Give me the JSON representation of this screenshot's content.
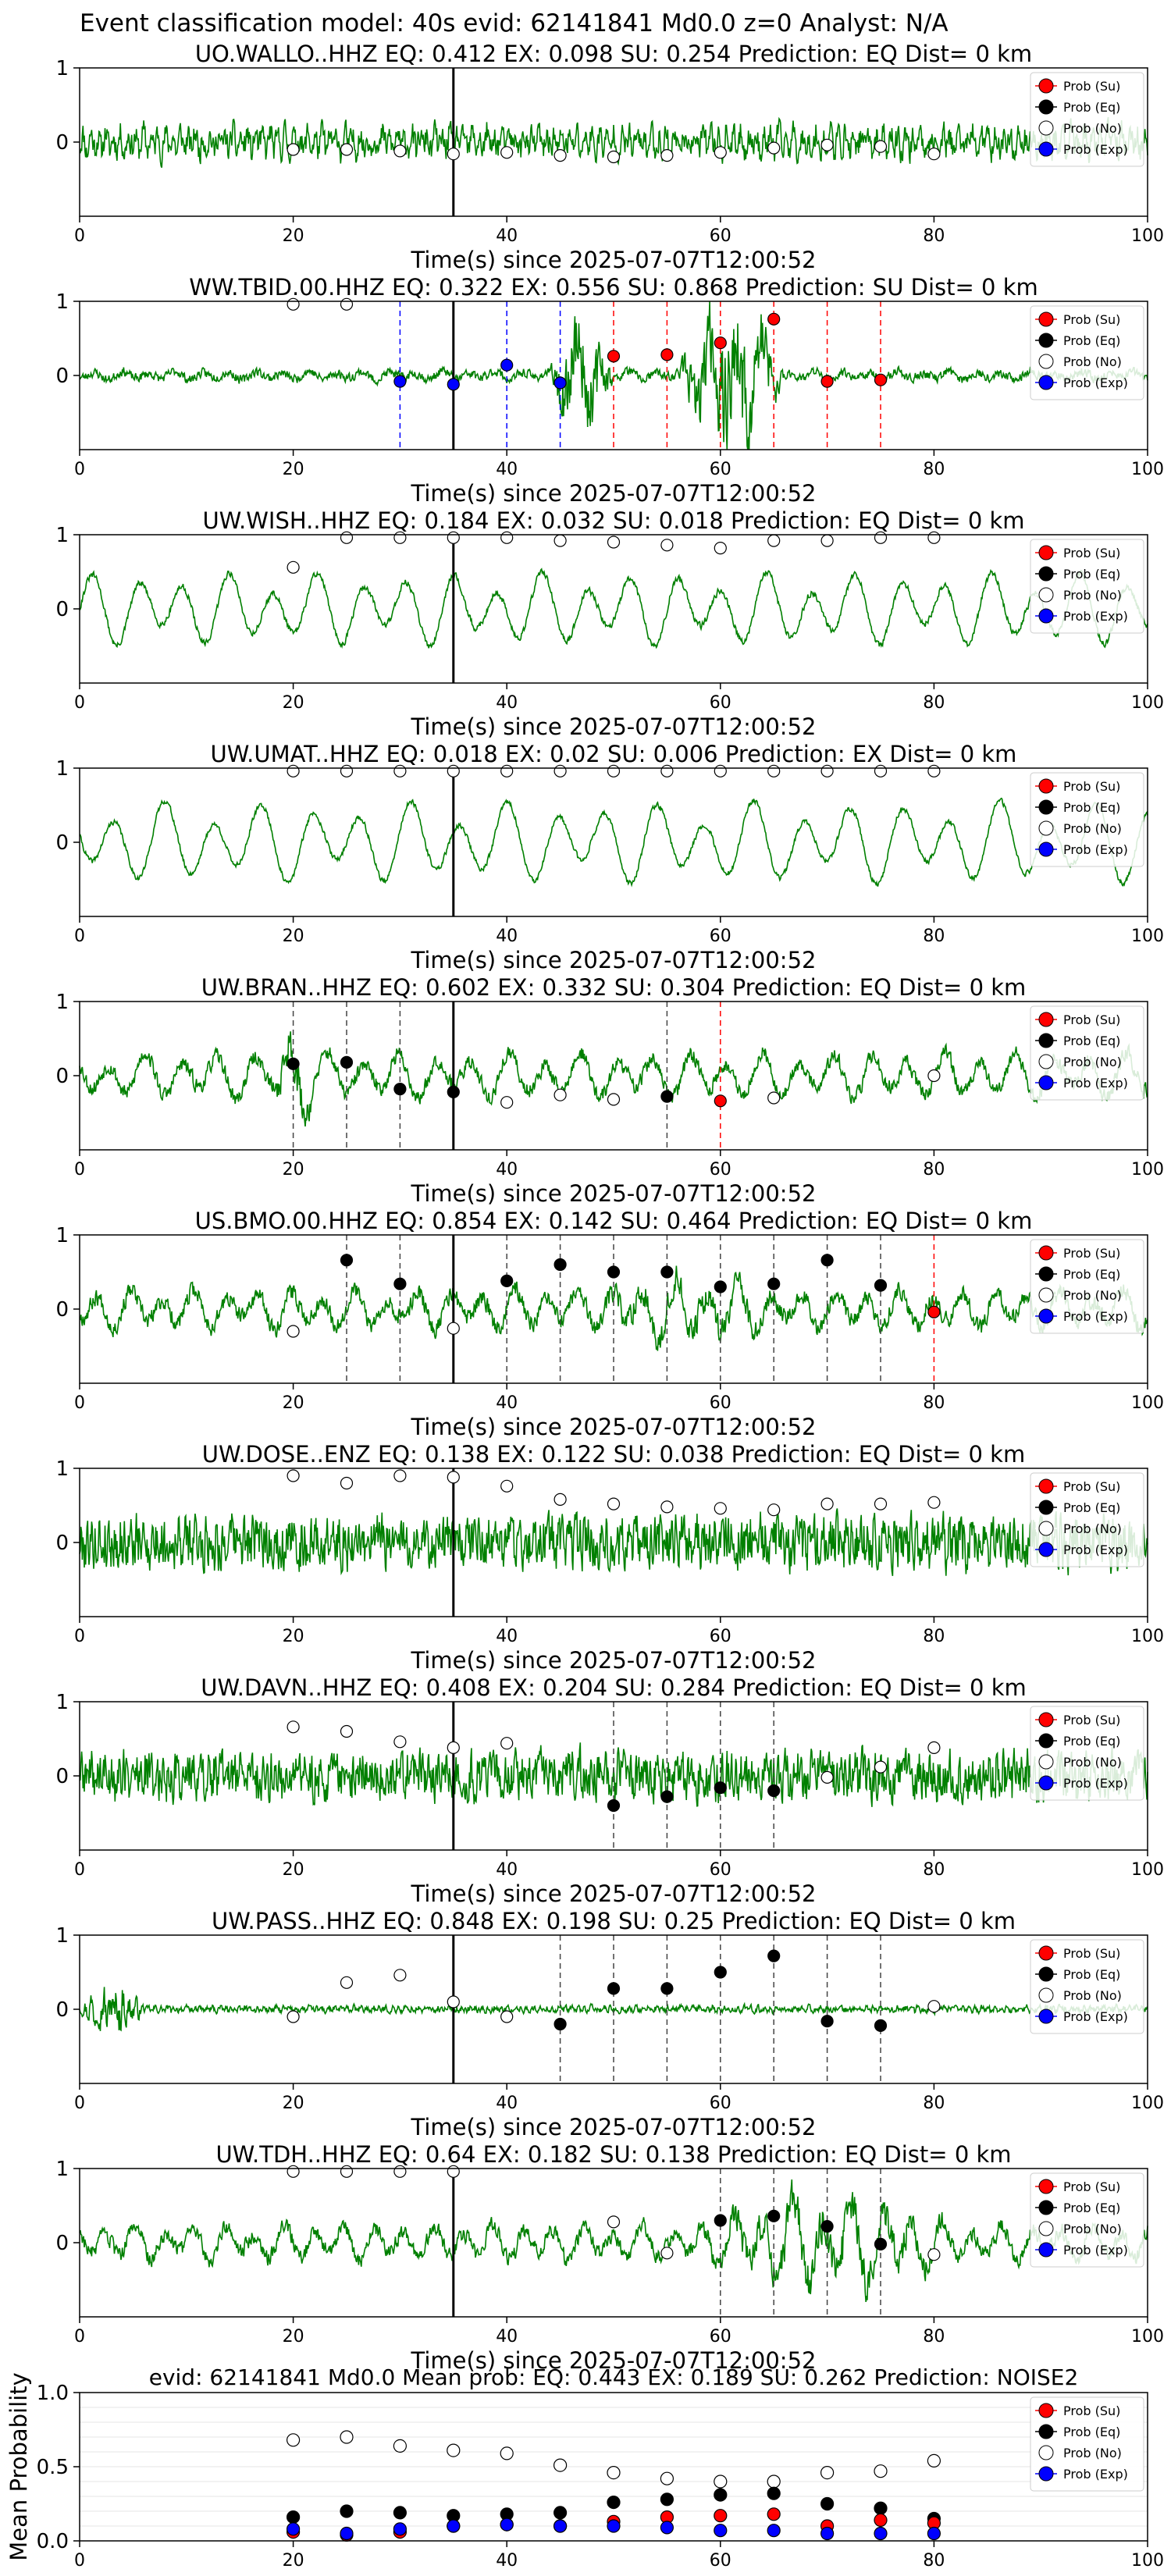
{
  "suptitle": "Event classification model: 40s evid: 62141841 Md0.0 z=0 Analyst: N/A",
  "colors": {
    "trace": "#008000",
    "su": "#ff0000",
    "eq": "#000000",
    "no": "#ffffff",
    "exp": "#0000ff",
    "axis": "#000000",
    "grid": "#e6e6e6"
  },
  "legend": [
    "Prob (Su)",
    "Prob (Eq)",
    "Prob (No)",
    "Prob (Exp)"
  ],
  "windows": [
    20,
    25,
    30,
    35,
    40,
    45,
    50,
    55,
    60,
    65,
    70,
    75,
    80
  ],
  "chart_data": [
    {
      "type": "line",
      "station": "UO.WALLO..HHZ",
      "eq": "0.412",
      "ex": "0.098",
      "su": "0.254",
      "prediction": "EQ",
      "dist": "0 km",
      "xlabel": "Time(s) since 2025-07-07T12:00:52",
      "xlim": [
        0,
        100
      ],
      "xticks": [
        0,
        20,
        40,
        60,
        80,
        100
      ],
      "yticks": [
        0,
        1
      ],
      "arrival": 35,
      "noise": [
        0.45,
        0.45,
        0.44,
        0.42,
        0.43,
        0.41,
        0.4,
        0.41,
        0.43,
        0.46,
        0.48,
        0.47,
        0.42
      ],
      "eq_pts": [],
      "su_pts": [],
      "exp_pts": [],
      "wave": {
        "amp": 0.32,
        "period": 0.7,
        "hf": 0.55,
        "seed": 11,
        "bursts": []
      }
    },
    {
      "type": "line",
      "station": "WW.TBID.00.HHZ",
      "eq": "0.322",
      "ex": "0.556",
      "su": "0.868",
      "prediction": "SU",
      "dist": "0 km",
      "xlabel": "Time(s) since 2025-07-07T12:00:52",
      "xlim": [
        0,
        100
      ],
      "xticks": [
        0,
        20,
        40,
        60,
        80,
        100
      ],
      "yticks": [
        0,
        1
      ],
      "arrival": 35,
      "noise": [
        0.98,
        0.98
      ],
      "eq_pts": [],
      "su_pts": [
        [
          50,
          0.63
        ],
        [
          55,
          0.64
        ],
        [
          60,
          0.72
        ],
        [
          65,
          0.88
        ],
        [
          70,
          0.46
        ],
        [
          75,
          0.47
        ]
      ],
      "exp_pts": [
        [
          30,
          0.46
        ],
        [
          35,
          0.44
        ],
        [
          40,
          0.57
        ],
        [
          45,
          0.45
        ]
      ],
      "wave": {
        "amp": 0.12,
        "period": 2.5,
        "hf": 0.5,
        "seed": 23,
        "bursts": [
          [
            44,
            50,
            0.9,
            0.25
          ],
          [
            56,
            66,
            1.3,
            0.35
          ]
        ]
      }
    },
    {
      "type": "line",
      "station": "UW.WISH..HHZ",
      "eq": "0.184",
      "ex": "0.032",
      "su": "0.018",
      "prediction": "EQ",
      "dist": "0 km",
      "xlabel": "Time(s) since 2025-07-07T12:00:52",
      "xlim": [
        0,
        100
      ],
      "xticks": [
        0,
        20,
        40,
        60,
        80,
        100
      ],
      "yticks": [
        0,
        1
      ],
      "arrival": 35,
      "noise": [
        0.78,
        0.98,
        0.98,
        0.98,
        0.98,
        0.96,
        0.95,
        0.93,
        0.91,
        0.96,
        0.96,
        0.98,
        0.98
      ],
      "eq_pts": [],
      "su_pts": [],
      "exp_pts": [],
      "wave": {
        "amp": 0.55,
        "period": 4.2,
        "hf": 0.08,
        "seed": 31,
        "bursts": []
      }
    },
    {
      "type": "line",
      "station": "UW.UMAT..HHZ",
      "eq": "0.018",
      "ex": "0.02",
      "su": "0.006",
      "prediction": "EX",
      "dist": "0 km",
      "xlabel": "Time(s) since 2025-07-07T12:00:52",
      "xlim": [
        0,
        100
      ],
      "xticks": [
        0,
        20,
        40,
        60,
        80,
        100
      ],
      "yticks": [
        0,
        1
      ],
      "arrival": 35,
      "noise": [
        0.98,
        0.98,
        0.98,
        0.98,
        0.98,
        0.98,
        0.98,
        0.98,
        0.98,
        0.98,
        0.98,
        0.98,
        0.98
      ],
      "eq_pts": [],
      "su_pts": [],
      "exp_pts": [],
      "wave": {
        "amp": 0.6,
        "period": 4.6,
        "hf": 0.06,
        "seed": 41,
        "bursts": []
      }
    },
    {
      "type": "line",
      "station": "UW.BRAN..HHZ",
      "eq": "0.602",
      "ex": "0.332",
      "su": "0.304",
      "prediction": "EQ",
      "dist": "0 km",
      "xlabel": "Time(s) since 2025-07-07T12:00:52",
      "xlim": [
        0,
        100
      ],
      "xticks": [
        0,
        20,
        40,
        60,
        80,
        100
      ],
      "yticks": [
        0,
        1
      ],
      "arrival": 35,
      "noise": [
        [
          40,
          0.32
        ],
        [
          45,
          0.37
        ],
        [
          50,
          0.34
        ],
        [
          65,
          0.35
        ],
        [
          80,
          0.5
        ]
      ],
      "eq_pts": [
        [
          20,
          0.58
        ],
        [
          25,
          0.59
        ],
        [
          30,
          0.41
        ],
        [
          35,
          0.39
        ],
        [
          55,
          0.36
        ]
      ],
      "su_pts": [
        [
          60,
          0.33
        ]
      ],
      "exp_pts": [],
      "wave": {
        "amp": 0.42,
        "period": 3.4,
        "hf": 0.25,
        "seed": 53,
        "bursts": [
          [
            18,
            22,
            0.7,
            0.4
          ]
        ]
      }
    },
    {
      "type": "line",
      "station": "US.BMO.00.HHZ",
      "eq": "0.854",
      "ex": "0.142",
      "su": "0.464",
      "prediction": "EQ",
      "dist": "0 km",
      "xlabel": "Time(s) since 2025-07-07T12:00:52",
      "xlim": [
        0,
        100
      ],
      "xticks": [
        0,
        20,
        40,
        60,
        80,
        100
      ],
      "yticks": [
        0,
        1
      ],
      "arrival": 35,
      "noise": [
        [
          20,
          0.35
        ],
        [
          35,
          0.37
        ]
      ],
      "eq_pts": [
        [
          25,
          0.83
        ],
        [
          30,
          0.67
        ],
        [
          40,
          0.69
        ],
        [
          45,
          0.8
        ],
        [
          50,
          0.75
        ],
        [
          55,
          0.75
        ],
        [
          60,
          0.65
        ],
        [
          65,
          0.67
        ],
        [
          70,
          0.83
        ],
        [
          75,
          0.66
        ]
      ],
      "su_pts": [
        [
          80,
          0.48
        ]
      ],
      "exp_pts": [],
      "wave": {
        "amp": 0.38,
        "period": 3.0,
        "hf": 0.3,
        "seed": 67,
        "bursts": [
          [
            48,
            66,
            0.25,
            0.5
          ]
        ]
      }
    },
    {
      "type": "line",
      "station": "UW.DOSE..ENZ",
      "eq": "0.138",
      "ex": "0.122",
      "su": "0.038",
      "prediction": "EQ",
      "dist": "0 km",
      "xlabel": "Time(s) since 2025-07-07T12:00:52",
      "xlim": [
        0,
        100
      ],
      "xticks": [
        0,
        20,
        40,
        60,
        80,
        100
      ],
      "yticks": [
        0,
        1
      ],
      "arrival": 35,
      "noise": [
        0.95,
        0.9,
        0.95,
        0.94,
        0.88,
        0.79,
        0.76,
        0.74,
        0.73,
        0.72,
        0.76,
        0.76,
        0.77
      ],
      "eq_pts": [],
      "su_pts": [],
      "exp_pts": [],
      "wave": {
        "amp": 0.42,
        "period": 0.5,
        "hf": 0.85,
        "seed": 79,
        "bursts": []
      }
    },
    {
      "type": "line",
      "station": "UW.DAVN..HHZ",
      "eq": "0.408",
      "ex": "0.204",
      "su": "0.284",
      "prediction": "EQ",
      "dist": "0 km",
      "xlabel": "Time(s) since 2025-07-07T12:00:52",
      "xlim": [
        0,
        100
      ],
      "xticks": [
        0,
        20,
        40,
        60,
        80,
        100
      ],
      "yticks": [
        0,
        1
      ],
      "arrival": 35,
      "noise": [
        [
          20,
          0.83
        ],
        [
          25,
          0.8
        ],
        [
          30,
          0.73
        ],
        [
          35,
          0.69
        ],
        [
          40,
          0.72
        ],
        [
          70,
          0.49
        ],
        [
          75,
          0.56
        ],
        [
          80,
          0.69
        ]
      ],
      "eq_pts": [
        [
          50,
          0.3
        ],
        [
          55,
          0.36
        ],
        [
          60,
          0.42
        ],
        [
          65,
          0.4
        ]
      ],
      "su_pts": [],
      "exp_pts": [],
      "wave": {
        "amp": 0.4,
        "period": 0.6,
        "hf": 0.8,
        "seed": 89,
        "bursts": []
      }
    },
    {
      "type": "line",
      "station": "UW.PASS..HHZ",
      "eq": "0.848",
      "ex": "0.198",
      "su": "0.25",
      "prediction": "EQ",
      "dist": "0 km",
      "xlabel": "Time(s) since 2025-07-07T12:00:52",
      "xlim": [
        0,
        100
      ],
      "xticks": [
        0,
        20,
        40,
        60,
        80,
        100
      ],
      "yticks": [
        0,
        1
      ],
      "arrival": 35,
      "noise": [
        [
          20,
          0.45
        ],
        [
          25,
          0.68
        ],
        [
          30,
          0.73
        ],
        [
          35,
          0.55
        ],
        [
          40,
          0.45
        ],
        [
          80,
          0.52
        ]
      ],
      "eq_pts": [
        [
          45,
          0.4
        ],
        [
          50,
          0.64
        ],
        [
          55,
          0.64
        ],
        [
          60,
          0.75
        ],
        [
          65,
          0.86
        ],
        [
          70,
          0.42
        ],
        [
          75,
          0.39
        ]
      ],
      "su_pts": [],
      "exp_pts": [],
      "wave": {
        "amp": 0.07,
        "period": 0.6,
        "hf": 0.6,
        "seed": 97,
        "bursts": [
          [
            0,
            6,
            0.35,
            0.6
          ]
        ]
      }
    },
    {
      "type": "line",
      "station": "UW.TDH..HHZ",
      "eq": "0.64",
      "ex": "0.182",
      "su": "0.138",
      "prediction": "EQ",
      "dist": "0 km",
      "xlabel": "Time(s) since 2025-07-07T12:00:52",
      "xlim": [
        0,
        100
      ],
      "xticks": [
        0,
        20,
        40,
        60,
        80,
        100
      ],
      "yticks": [
        0,
        1
      ],
      "arrival": 35,
      "noise": [
        [
          20,
          0.98
        ],
        [
          25,
          0.98
        ],
        [
          30,
          0.98
        ],
        [
          35,
          0.98
        ],
        [
          50,
          0.64
        ],
        [
          55,
          0.43
        ],
        [
          80,
          0.42
        ]
      ],
      "eq_pts": [
        [
          60,
          0.65
        ],
        [
          65,
          0.68
        ],
        [
          70,
          0.61
        ],
        [
          75,
          0.49
        ]
      ],
      "su_pts": [],
      "exp_pts": [],
      "wave": {
        "amp": 0.35,
        "period": 2.8,
        "hf": 0.3,
        "seed": 103,
        "bursts": [
          [
            58,
            82,
            0.55,
            0.1
          ]
        ]
      }
    },
    {
      "type": "scatter",
      "title": "evid: 62141841  Md0.0   Mean prob:   EQ: 0.443  EX: 0.189  SU: 0.262   Prediction: NOISE2",
      "ylabel": "Mean Probability",
      "xlim": [
        0,
        100
      ],
      "ylim": [
        0,
        1
      ],
      "xticks": [
        0,
        20,
        40,
        60,
        80,
        100
      ],
      "yticks": [
        "0.0",
        "0.5",
        "1.0"
      ],
      "x": [
        20,
        25,
        30,
        35,
        40,
        45,
        50,
        55,
        60,
        65,
        70,
        75,
        80
      ],
      "series": [
        {
          "name": "Prob (No)",
          "values": [
            0.68,
            0.7,
            0.64,
            0.61,
            0.59,
            0.51,
            0.46,
            0.42,
            0.4,
            0.4,
            0.46,
            0.47,
            0.54
          ]
        },
        {
          "name": "Prob (Eq)",
          "values": [
            0.16,
            0.2,
            0.19,
            0.17,
            0.18,
            0.19,
            0.26,
            0.28,
            0.31,
            0.32,
            0.25,
            0.22,
            0.15
          ]
        },
        {
          "name": "Prob (Su)",
          "values": [
            0.06,
            0.04,
            0.06,
            0.1,
            0.11,
            0.1,
            0.13,
            0.16,
            0.17,
            0.18,
            0.1,
            0.14,
            0.12
          ]
        },
        {
          "name": "Prob (Exp)",
          "values": [
            0.08,
            0.05,
            0.08,
            0.1,
            0.11,
            0.1,
            0.1,
            0.09,
            0.07,
            0.07,
            0.05,
            0.05,
            0.05
          ]
        }
      ]
    }
  ]
}
